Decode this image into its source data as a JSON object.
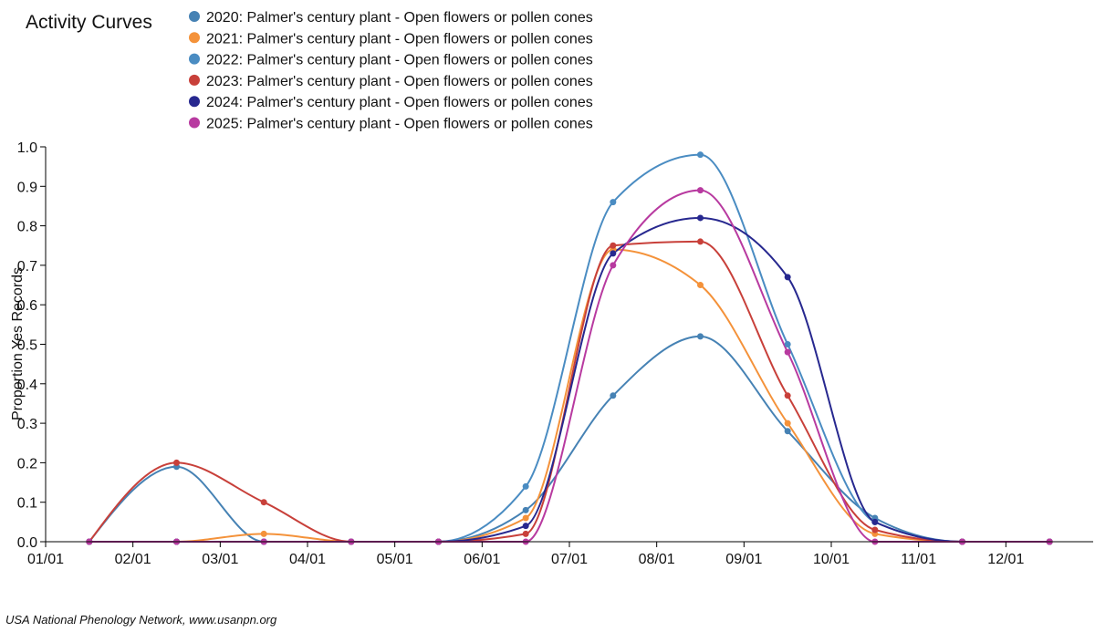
{
  "chart_data": {
    "type": "line",
    "title": "Activity Curves",
    "ylabel": "Proportion Yes Records",
    "xlabel": "",
    "credit": "USA National Phenology Network, www.usanpn.org",
    "ylim": [
      0,
      1
    ],
    "xlim_months": [
      1,
      13
    ],
    "x_tick_labels": [
      "01/01",
      "02/01",
      "03/01",
      "04/01",
      "05/01",
      "06/01",
      "07/01",
      "08/01",
      "09/01",
      "10/01",
      "11/01",
      "12/01"
    ],
    "y_tick_labels": [
      "0.0",
      "0.1",
      "0.2",
      "0.3",
      "0.4",
      "0.5",
      "0.6",
      "0.7",
      "0.8",
      "0.9",
      "1.0"
    ],
    "y_ticks": [
      0,
      0.1,
      0.2,
      0.3,
      0.4,
      0.5,
      0.6,
      0.7,
      0.8,
      0.9,
      1.0
    ],
    "x": [
      1.5,
      2.5,
      3.5,
      4.5,
      5.5,
      6.5,
      7.5,
      8.5,
      9.5,
      10.5,
      11.5,
      12.5
    ],
    "legend_position": "top",
    "series": [
      {
        "name": "2020: Palmer's century plant - Open flowers or pollen cones",
        "color": "#4682b4",
        "values": [
          0,
          0.19,
          0,
          0,
          0,
          0.08,
          0.37,
          0.52,
          0.28,
          0.06,
          0,
          0
        ]
      },
      {
        "name": "2021: Palmer's century plant - Open flowers or pollen cones",
        "color": "#f4923a",
        "values": [
          0,
          0,
          0.02,
          0,
          0,
          0.06,
          0.74,
          0.65,
          0.3,
          0.02,
          0,
          0
        ]
      },
      {
        "name": "2022: Palmer's century plant - Open flowers or pollen cones",
        "color": "#4a8cc2",
        "values": [
          0,
          0,
          0,
          0,
          0,
          0.14,
          0.86,
          0.98,
          0.5,
          0.05,
          0,
          0
        ]
      },
      {
        "name": "2023: Palmer's century plant - Open flowers or pollen cones",
        "color": "#c8403a",
        "values": [
          0,
          0.2,
          0.1,
          0,
          0,
          0.02,
          0.75,
          0.76,
          0.37,
          0.03,
          0,
          0
        ]
      },
      {
        "name": "2024: Palmer's century plant - Open flowers or pollen cones",
        "color": "#27288f",
        "values": [
          0,
          0,
          0,
          0,
          0,
          0.04,
          0.73,
          0.82,
          0.67,
          0.05,
          0,
          0
        ]
      },
      {
        "name": "2025: Palmer's century plant - Open flowers or pollen cones",
        "color": "#b83aa0",
        "values": [
          0,
          0,
          0,
          0,
          0,
          0,
          0.7,
          0.89,
          0.48,
          0,
          0,
          0
        ]
      }
    ]
  }
}
